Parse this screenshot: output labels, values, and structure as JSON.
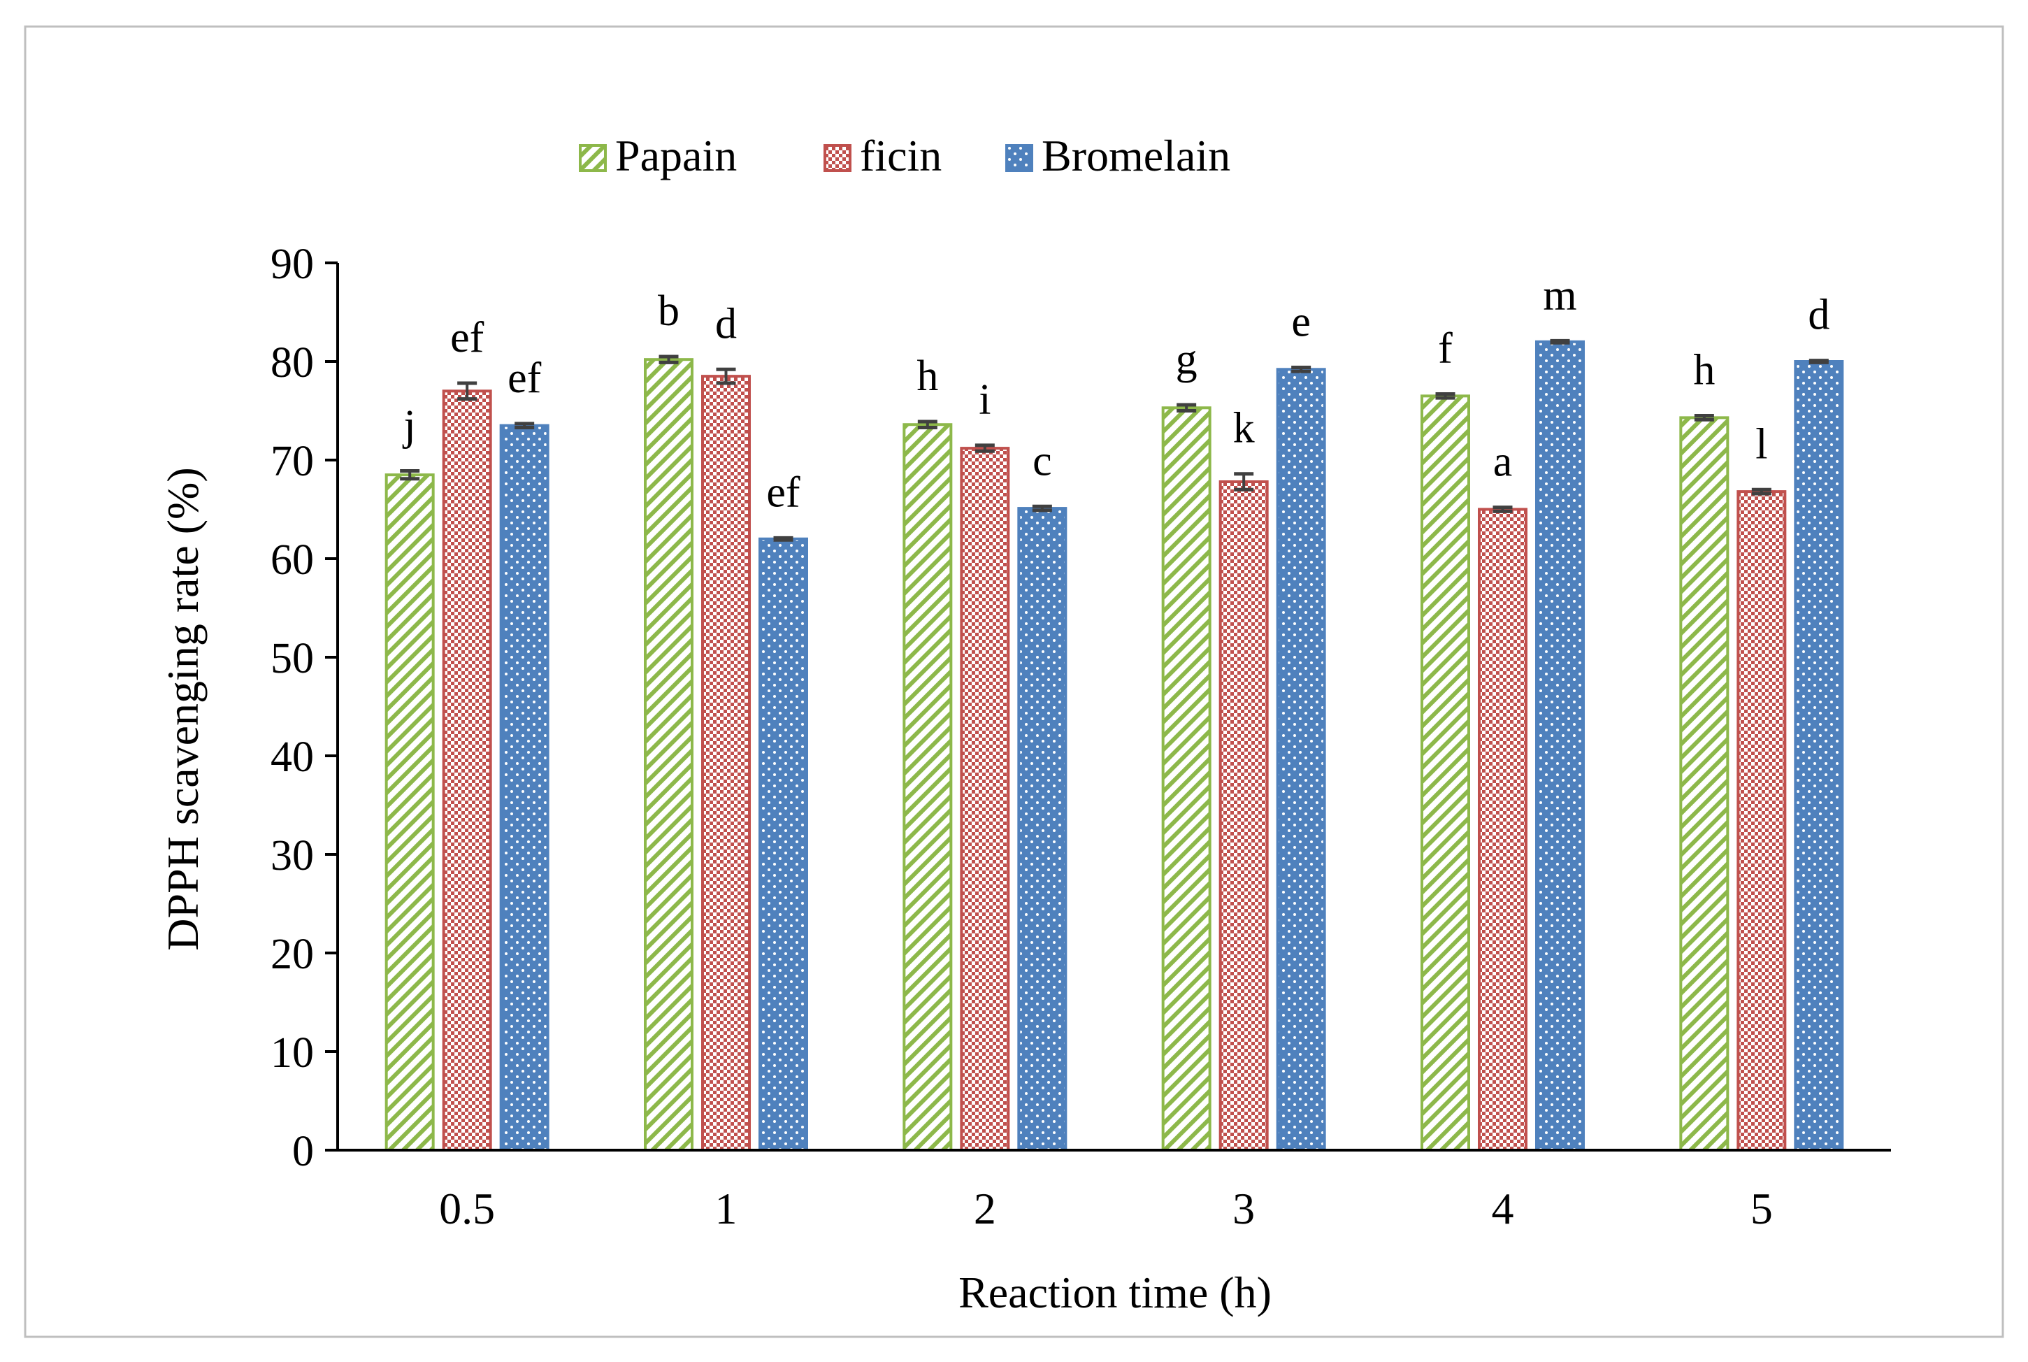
{
  "chart_data": {
    "type": "bar",
    "title": "",
    "xlabel": "Reaction time (h)",
    "ylabel": "DPPH scavenging rate (%)",
    "categories": [
      "0.5",
      "1",
      "2",
      "3",
      "4",
      "5"
    ],
    "ylim": [
      0,
      90
    ],
    "yticks": [
      "0",
      "10",
      "20",
      "30",
      "40",
      "50",
      "60",
      "70",
      "80",
      "90"
    ],
    "grid": false,
    "legend_position": "top",
    "series": [
      {
        "name": "Papain",
        "color": "#8DB84A",
        "pattern": "diagonal-stripes",
        "values": [
          68.5,
          80.2,
          73.6,
          75.3,
          76.5,
          74.3
        ],
        "errors": [
          0.4,
          0.3,
          0.3,
          0.3,
          0.2,
          0.2
        ],
        "labels": [
          "j",
          "b",
          "h",
          "g",
          "f",
          "h"
        ]
      },
      {
        "name": "ficin",
        "color": "#C0504D",
        "pattern": "checkerboard",
        "values": [
          77.0,
          78.5,
          71.2,
          67.8,
          65.0,
          66.8
        ],
        "errors": [
          0.8,
          0.7,
          0.3,
          0.8,
          0.2,
          0.2
        ],
        "labels": [
          "ef",
          "d",
          "i",
          "k",
          "a",
          "l"
        ]
      },
      {
        "name": "Bromelain",
        "color": "#4F81BD",
        "pattern": "dots",
        "values": [
          73.5,
          62.0,
          65.1,
          79.2,
          82.0,
          80.0
        ],
        "errors": [
          0.2,
          0.1,
          0.2,
          0.2,
          0.1,
          0.1
        ],
        "labels": [
          "ef",
          "ef",
          "c",
          "e",
          "m",
          "d"
        ]
      }
    ]
  }
}
